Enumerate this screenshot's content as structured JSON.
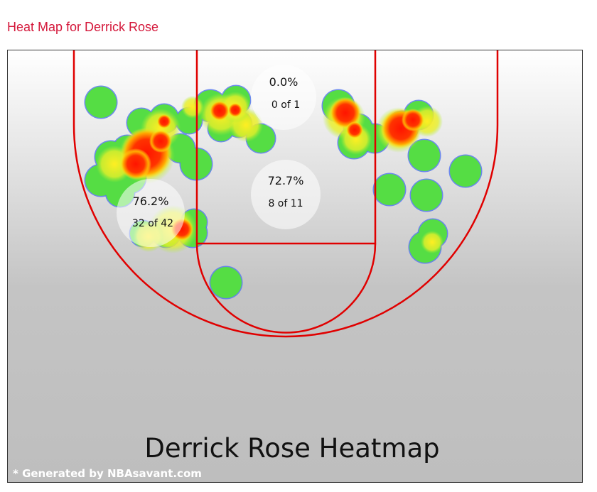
{
  "header": {
    "title": "Heat Map for Derrick Rose"
  },
  "chart_data": {
    "type": "heatmap",
    "title": "Derrick Rose Heatmap",
    "credit": "* Generated by NBAsavant.com",
    "zones": [
      {
        "name": "paint-top",
        "pct": "0.0%",
        "made_of_attempts": "0 of 1"
      },
      {
        "name": "paint",
        "pct": "72.7%",
        "made_of_attempts": "8 of 11"
      },
      {
        "name": "left-block",
        "pct": "76.2%",
        "made_of_attempts": "32 of 42"
      }
    ],
    "colors": {
      "court_lines": "#e00000",
      "low_density": "#55dd44",
      "mid_density": "#eeee22",
      "high_density": "#ff1a00",
      "blob_outline": "#5577ee",
      "background_top": "#ffffff",
      "background_bottom": "#bfbfbf",
      "title_color": "#d4173a"
    }
  }
}
